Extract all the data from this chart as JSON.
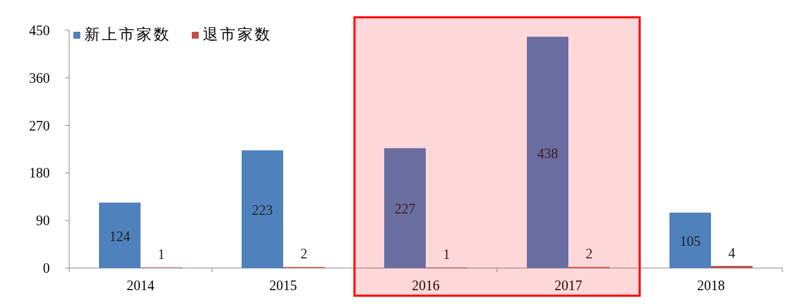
{
  "chart_data": {
    "type": "bar",
    "categories": [
      "2014",
      "2015",
      "2016",
      "2017",
      "2018"
    ],
    "series": [
      {
        "name": "新上市家数",
        "color": "#4f81bd",
        "values": [
          124,
          223,
          227,
          438,
          105
        ]
      },
      {
        "name": "退市家数",
        "color": "#c0504d",
        "values": [
          1,
          2,
          1,
          2,
          4
        ]
      }
    ],
    "ylim": [
      0,
      450
    ],
    "yticks": [
      0,
      90,
      180,
      270,
      360,
      450
    ],
    "data_labels": true,
    "legend": "top left",
    "grid": false,
    "bands": [
      {
        "axis": "x",
        "from": "2016",
        "to": "2017",
        "color": "#ff0000"
      }
    ]
  }
}
